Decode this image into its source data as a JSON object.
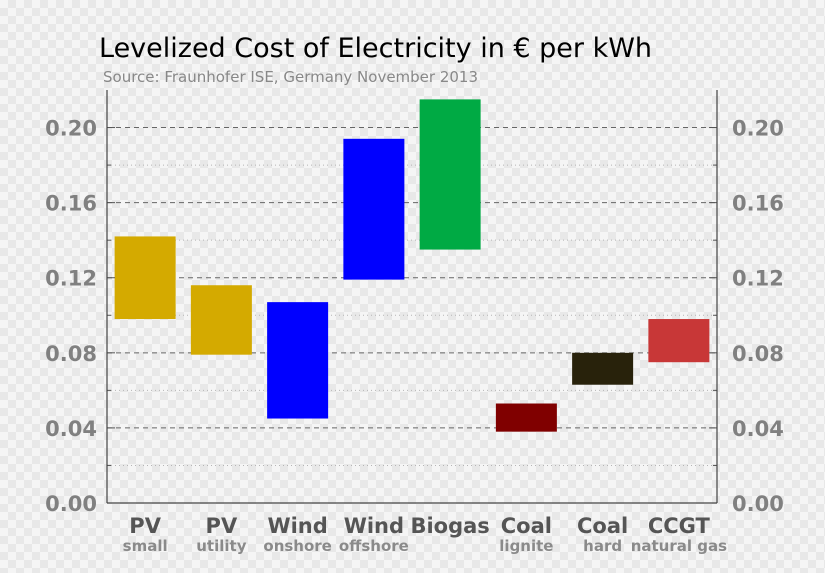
{
  "chart_data": {
    "type": "bar",
    "title": "Levelized Cost of Electricity in € per kWh",
    "subtitle": "Source: Fraunhofer ISE, Germany November 2013",
    "ylim": [
      0,
      0.22
    ],
    "yticks": [
      "0.00",
      "0.04",
      "0.08",
      "0.12",
      "0.16",
      "0.20"
    ],
    "ytick_values": [
      0,
      0.04,
      0.08,
      0.12,
      0.16,
      0.2
    ],
    "grid": true,
    "categories": [
      {
        "label": "PV",
        "sublabel": "small",
        "low": 0.098,
        "high": 0.142,
        "color": "#d4aa00"
      },
      {
        "label": "PV",
        "sublabel": "utility",
        "low": 0.079,
        "high": 0.116,
        "color": "#d4aa00"
      },
      {
        "label": "Wind",
        "sublabel": "onshore",
        "low": 0.045,
        "high": 0.107,
        "color": "#0000ff"
      },
      {
        "label": "Wind",
        "sublabel": "offshore",
        "low": 0.119,
        "high": 0.194,
        "color": "#0000ff"
      },
      {
        "label": "Biogas",
        "sublabel": "",
        "low": 0.135,
        "high": 0.215,
        "color": "#00aa44"
      },
      {
        "label": "Coal",
        "sublabel": "lignite",
        "low": 0.038,
        "high": 0.053,
        "color": "#800000"
      },
      {
        "label": "Coal",
        "sublabel": "hard",
        "low": 0.063,
        "high": 0.08,
        "color": "#28220b"
      },
      {
        "label": "CCGT",
        "sublabel": "natural gas",
        "low": 0.075,
        "high": 0.098,
        "color": "#c83737"
      }
    ]
  }
}
